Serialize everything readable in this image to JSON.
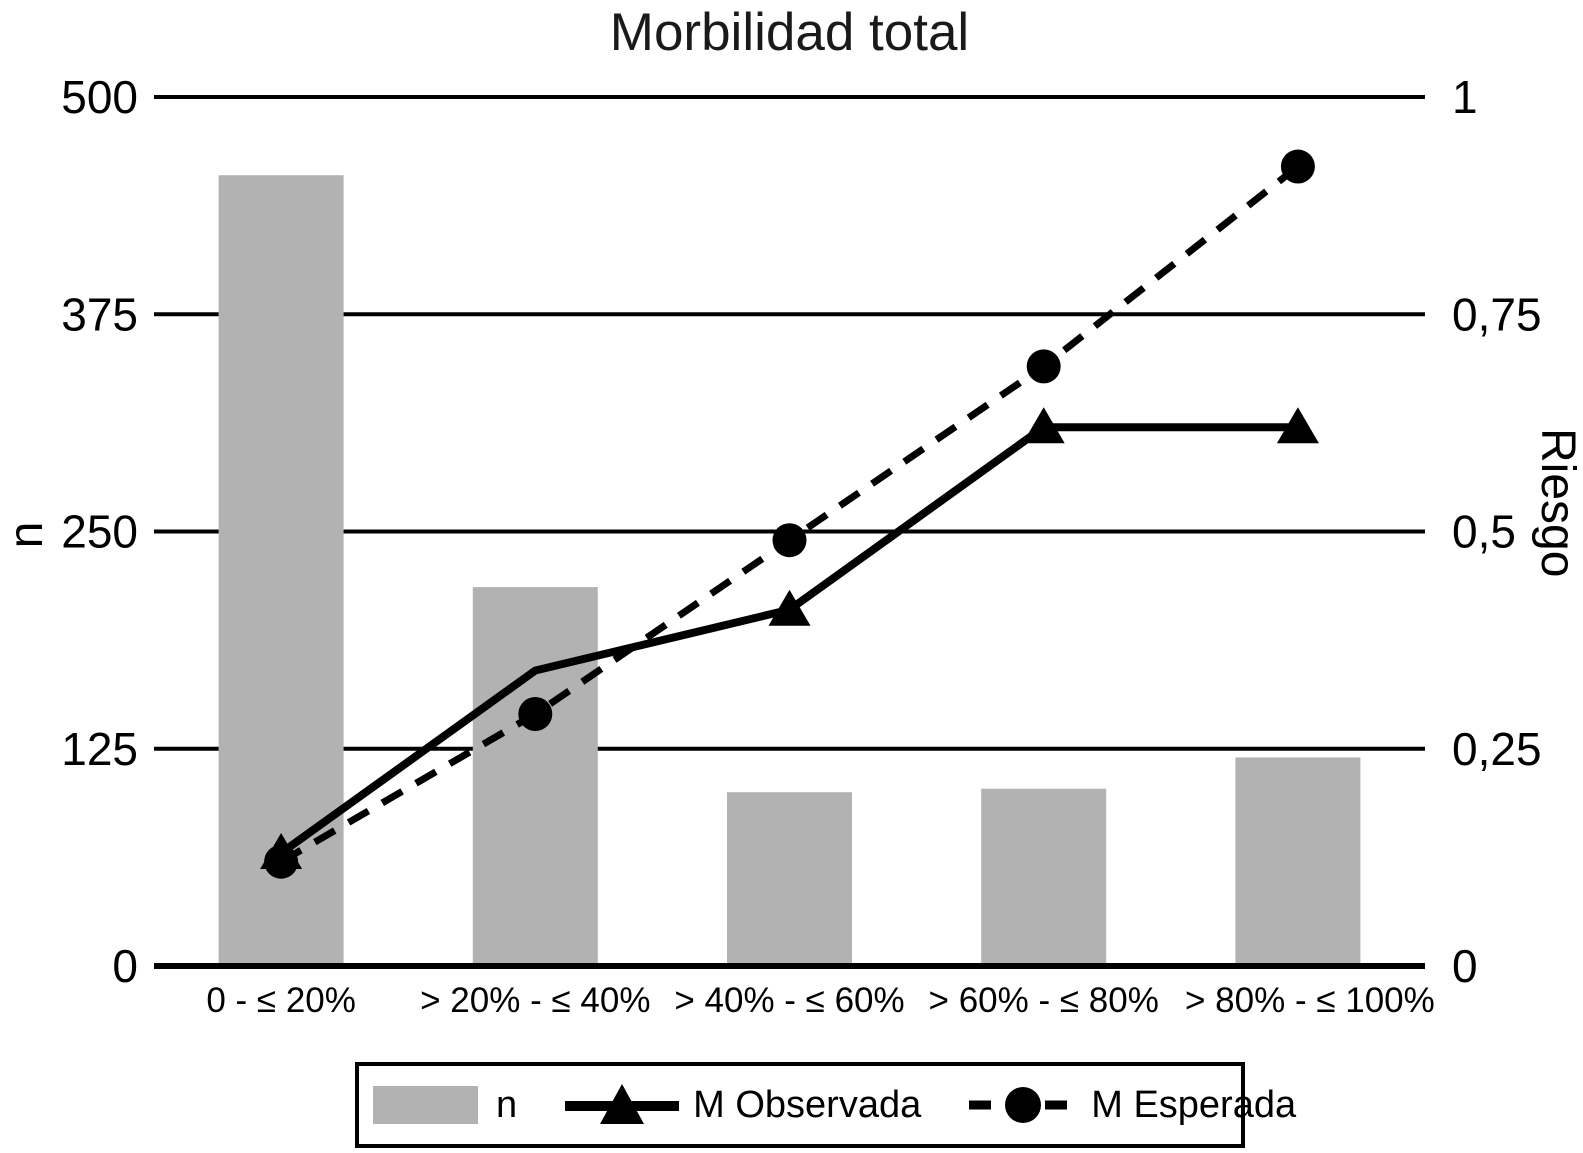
{
  "figure": {
    "title": "Morbilidad total"
  },
  "chart_data": {
    "type": "combo-bar-line",
    "title": "Morbilidad total",
    "categories": [
      "0 - ≤ 20%",
      "> 20% - ≤ 40%",
      "> 40% - ≤ 60%",
      "> 60% - ≤ 80%",
      "> 80% - ≤ 100%"
    ],
    "left_axis": {
      "label": "n",
      "tick_labels": [
        "0",
        "125",
        "250",
        "375",
        "500"
      ],
      "tick_values": [
        0,
        125,
        250,
        375,
        500
      ],
      "range": [
        0,
        500
      ]
    },
    "right_axis": {
      "label": "Riesgo",
      "tick_labels": [
        "0",
        "0,25",
        "0,5",
        "0,75",
        "1"
      ],
      "tick_values": [
        0,
        0.25,
        0.5,
        0.75,
        1
      ],
      "range": [
        0,
        1
      ]
    },
    "grid": true,
    "legend_position": "bottom",
    "colors": {
      "bar": "#b2b2b2",
      "line": "#000000",
      "background": "#ffffff"
    },
    "series": [
      {
        "name": "n",
        "type": "bar",
        "axis": "left",
        "color": "#b2b2b2",
        "values": [
          455,
          218,
          100,
          102,
          120
        ]
      },
      {
        "name": "M Observada",
        "type": "line",
        "style": "solid",
        "marker": "triangle",
        "axis": "right",
        "color": "#000000",
        "values": [
          0.13,
          0.34,
          0.41,
          0.62,
          0.62
        ],
        "markers_shown": [
          true,
          false,
          true,
          true,
          true
        ]
      },
      {
        "name": "M Esperada",
        "type": "line",
        "style": "dashed",
        "marker": "circle",
        "axis": "right",
        "color": "#000000",
        "values": [
          0.12,
          0.29,
          0.49,
          0.69,
          0.92
        ],
        "markers_shown": [
          true,
          true,
          true,
          true,
          true
        ]
      }
    ]
  }
}
